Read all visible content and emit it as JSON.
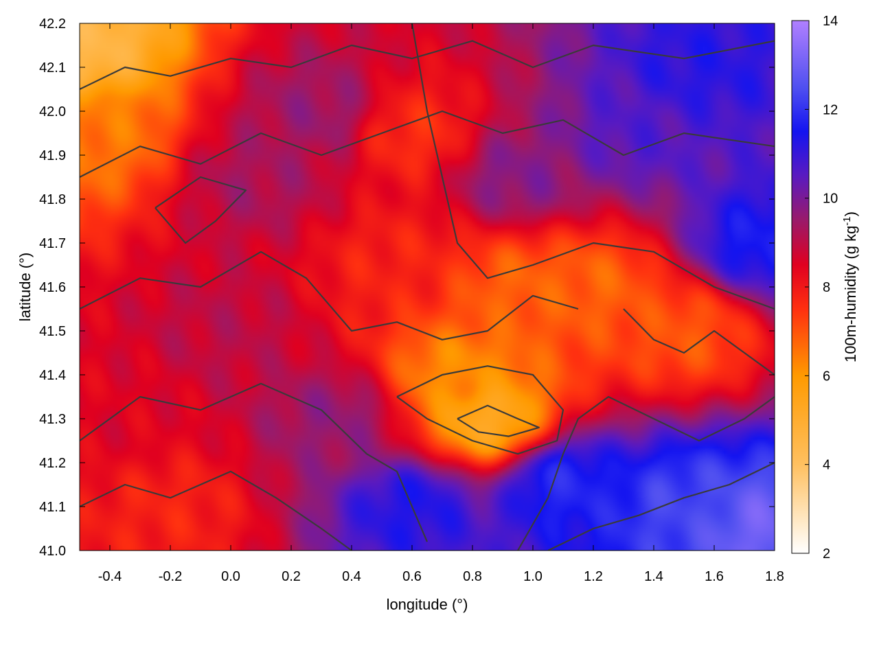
{
  "chart_data": {
    "type": "heatmap",
    "title": "",
    "xlabel": "longitude (°)",
    "ylabel": "latitude (°)",
    "colorbar_label": "100m-humidity (g kg-1)",
    "colorbar_label_parts": {
      "base": "100m-humidity (g kg",
      "sup": "-1",
      "end": ")"
    },
    "xlim": [
      -0.5,
      1.8
    ],
    "ylim": [
      41.0,
      42.2
    ],
    "clim": [
      2,
      14
    ],
    "x_ticks": [
      "-0.4",
      "-0.2",
      "0.0",
      "0.2",
      "0.4",
      "0.6",
      "0.8",
      "1.0",
      "1.2",
      "1.4",
      "1.6",
      "1.8"
    ],
    "x_tick_values": [
      -0.4,
      -0.2,
      0.0,
      0.2,
      0.4,
      0.6,
      0.8,
      1.0,
      1.2,
      1.4,
      1.6,
      1.8
    ],
    "y_ticks": [
      "41.0",
      "41.1",
      "41.2",
      "41.3",
      "41.4",
      "41.5",
      "41.6",
      "41.7",
      "41.8",
      "41.9",
      "42.0",
      "42.1",
      "42.2"
    ],
    "y_tick_values": [
      41.0,
      41.1,
      41.2,
      41.3,
      41.4,
      41.5,
      41.6,
      41.7,
      41.8,
      41.9,
      42.0,
      42.1,
      42.2
    ],
    "colorbar_ticks": [
      "2",
      "4",
      "6",
      "8",
      "10",
      "12",
      "14"
    ],
    "colorbar_tick_values": [
      2,
      4,
      6,
      8,
      10,
      12,
      14
    ],
    "colormap": [
      {
        "value": 2,
        "color": "#ffffff"
      },
      {
        "value": 4,
        "color": "#ffc060"
      },
      {
        "value": 6,
        "color": "#ff9a00"
      },
      {
        "value": 7.5,
        "color": "#ff3010"
      },
      {
        "value": 8.5,
        "color": "#e00020"
      },
      {
        "value": 9.5,
        "color": "#9a1a6a"
      },
      {
        "value": 10.5,
        "color": "#5a1ac0"
      },
      {
        "value": 11.5,
        "color": "#1414f0"
      },
      {
        "value": 12.5,
        "color": "#5050f0"
      },
      {
        "value": 14,
        "color": "#b080ff"
      }
    ],
    "grid": false,
    "field_regions": [
      {
        "lon": -0.5,
        "lat": 42.15,
        "humidity": 4.5
      },
      {
        "lon": -0.45,
        "lat": 41.95,
        "humidity": 6.5
      },
      {
        "lon": -0.35,
        "lat": 41.3,
        "humidity": 8.5
      },
      {
        "lon": -0.2,
        "lat": 41.1,
        "humidity": 7.8
      },
      {
        "lon": 0.0,
        "lat": 41.5,
        "humidity": 9.0
      },
      {
        "lon": 0.1,
        "lat": 41.85,
        "humidity": 9.3
      },
      {
        "lon": 0.3,
        "lat": 42.0,
        "humidity": 9.5
      },
      {
        "lon": 0.35,
        "lat": 41.3,
        "humidity": 9.6
      },
      {
        "lon": 0.55,
        "lat": 41.65,
        "humidity": 7.8
      },
      {
        "lon": 0.6,
        "lat": 41.95,
        "humidity": 7.6
      },
      {
        "lon": 0.75,
        "lat": 41.4,
        "humidity": 6.2
      },
      {
        "lon": 0.85,
        "lat": 41.3,
        "humidity": 5.3
      },
      {
        "lon": 0.95,
        "lat": 41.6,
        "humidity": 6.8
      },
      {
        "lon": 0.95,
        "lat": 41.85,
        "humidity": 9.8
      },
      {
        "lon": 1.2,
        "lat": 41.6,
        "humidity": 6.8
      },
      {
        "lon": 1.5,
        "lat": 41.5,
        "humidity": 7.0
      },
      {
        "lon": 1.35,
        "lat": 41.95,
        "humidity": 10.6
      },
      {
        "lon": 1.55,
        "lat": 42.1,
        "humidity": 11.2
      },
      {
        "lon": 0.6,
        "lat": 41.1,
        "humidity": 11.3
      },
      {
        "lon": 1.1,
        "lat": 41.15,
        "humidity": 11.8
      },
      {
        "lon": 1.5,
        "lat": 41.1,
        "humidity": 12.3
      },
      {
        "lon": 1.75,
        "lat": 41.05,
        "humidity": 13.0
      },
      {
        "lon": 1.75,
        "lat": 41.7,
        "humidity": 11.6
      }
    ],
    "contour_lines": [
      [
        [
          -0.5,
          41.55
        ],
        [
          -0.3,
          41.62
        ],
        [
          -0.1,
          41.6
        ],
        [
          0.1,
          41.68
        ],
        [
          0.25,
          41.62
        ],
        [
          0.4,
          41.5
        ],
        [
          0.55,
          41.52
        ],
        [
          0.7,
          41.48
        ],
        [
          0.85,
          41.5
        ],
        [
          1.0,
          41.58
        ],
        [
          1.15,
          41.55
        ]
      ],
      [
        [
          -0.5,
          41.25
        ],
        [
          -0.3,
          41.35
        ],
        [
          -0.1,
          41.32
        ],
        [
          0.1,
          41.38
        ],
        [
          0.3,
          41.32
        ],
        [
          0.45,
          41.22
        ],
        [
          0.55,
          41.18
        ],
        [
          0.65,
          41.02
        ]
      ],
      [
        [
          -0.5,
          41.85
        ],
        [
          -0.3,
          41.92
        ],
        [
          -0.1,
          41.88
        ],
        [
          0.1,
          41.95
        ],
        [
          0.3,
          41.9
        ],
        [
          0.5,
          41.95
        ],
        [
          0.7,
          42.0
        ],
        [
          0.9,
          41.95
        ],
        [
          1.1,
          41.98
        ],
        [
          1.3,
          41.9
        ],
        [
          1.5,
          41.95
        ],
        [
          1.8,
          41.92
        ]
      ],
      [
        [
          -0.5,
          42.05
        ],
        [
          -0.35,
          42.1
        ],
        [
          -0.2,
          42.08
        ],
        [
          0.0,
          42.12
        ],
        [
          0.2,
          42.1
        ],
        [
          0.4,
          42.15
        ],
        [
          0.6,
          42.12
        ],
        [
          0.8,
          42.16
        ],
        [
          1.0,
          42.1
        ],
        [
          1.2,
          42.15
        ],
        [
          1.5,
          42.12
        ],
        [
          1.8,
          42.16
        ]
      ],
      [
        [
          0.95,
          41.0
        ],
        [
          1.05,
          41.12
        ],
        [
          1.1,
          41.22
        ],
        [
          1.15,
          41.3
        ],
        [
          1.25,
          41.35
        ],
        [
          1.4,
          41.3
        ],
        [
          1.55,
          41.25
        ],
        [
          1.7,
          41.3
        ],
        [
          1.8,
          41.35
        ]
      ],
      [
        [
          1.05,
          41.0
        ],
        [
          1.2,
          41.05
        ],
        [
          1.35,
          41.08
        ],
        [
          1.5,
          41.12
        ],
        [
          1.65,
          41.15
        ],
        [
          1.8,
          41.2
        ]
      ],
      [
        [
          0.55,
          41.35
        ],
        [
          0.7,
          41.4
        ],
        [
          0.85,
          41.42
        ],
        [
          1.0,
          41.4
        ],
        [
          1.1,
          41.32
        ],
        [
          1.08,
          41.25
        ],
        [
          0.95,
          41.22
        ],
        [
          0.8,
          41.25
        ],
        [
          0.65,
          41.3
        ],
        [
          0.55,
          41.35
        ]
      ],
      [
        [
          0.75,
          41.3
        ],
        [
          0.85,
          41.33
        ],
        [
          0.95,
          41.3
        ],
        [
          1.02,
          41.28
        ],
        [
          0.92,
          41.26
        ],
        [
          0.82,
          41.27
        ],
        [
          0.75,
          41.3
        ]
      ],
      [
        [
          -0.5,
          41.1
        ],
        [
          -0.35,
          41.15
        ],
        [
          -0.2,
          41.12
        ],
        [
          0.0,
          41.18
        ],
        [
          0.15,
          41.12
        ],
        [
          0.3,
          41.05
        ],
        [
          0.4,
          41.0
        ]
      ],
      [
        [
          0.6,
          42.2
        ],
        [
          0.65,
          42.0
        ],
        [
          0.7,
          41.85
        ],
        [
          0.75,
          41.7
        ],
        [
          0.85,
          41.62
        ],
        [
          1.0,
          41.65
        ],
        [
          1.2,
          41.7
        ],
        [
          1.4,
          41.68
        ],
        [
          1.6,
          41.6
        ],
        [
          1.8,
          41.55
        ]
      ],
      [
        [
          1.3,
          41.55
        ],
        [
          1.4,
          41.48
        ],
        [
          1.5,
          41.45
        ],
        [
          1.6,
          41.5
        ],
        [
          1.7,
          41.45
        ],
        [
          1.8,
          41.4
        ]
      ],
      [
        [
          -0.25,
          41.78
        ],
        [
          -0.15,
          41.7
        ],
        [
          -0.05,
          41.75
        ],
        [
          0.05,
          41.82
        ],
        [
          -0.1,
          41.85
        ],
        [
          -0.25,
          41.78
        ]
      ]
    ]
  }
}
